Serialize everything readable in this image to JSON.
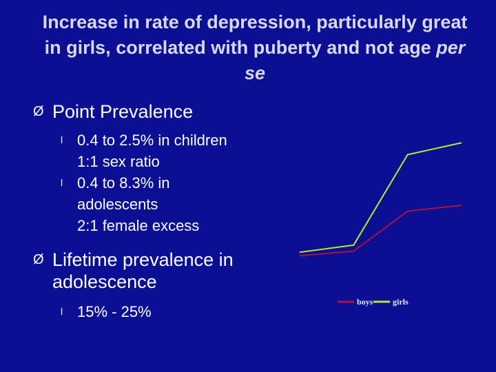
{
  "slide": {
    "title_part1": "Increase in rate of depression, particularly great in girls, correlated with puberty and not age",
    "title_em": "per se"
  },
  "bullets": {
    "point_prevalence": {
      "label": "Point Prevalence",
      "items": [
        {
          "line1": "0.4 to 2.5% in children",
          "line2": "1:1 sex ratio"
        },
        {
          "line1": "0.4 to 8.3% in",
          "line2": "adolescents",
          "line3": "2:1 female excess"
        }
      ]
    },
    "lifetime": {
      "label_line1": "Lifetime prevalence in",
      "label_line2": "adolescence",
      "items": [
        {
          "text": "15% - 25%"
        }
      ]
    },
    "symbols": {
      "arrow": "Ø",
      "dot": "l"
    }
  },
  "chart_data": {
    "type": "line",
    "x": [
      1,
      2,
      3,
      4
    ],
    "series": [
      {
        "name": "boys",
        "color": "#b0103a",
        "values": [
          1.0,
          1.8,
          8.5,
          9.5
        ]
      },
      {
        "name": "girls",
        "color": "#b8f020",
        "values": [
          1.6,
          2.8,
          18.0,
          20.0
        ]
      }
    ],
    "ylim": [
      0,
      22
    ],
    "title": "",
    "xlabel": "",
    "ylabel": "",
    "legend_position": "bottom"
  }
}
